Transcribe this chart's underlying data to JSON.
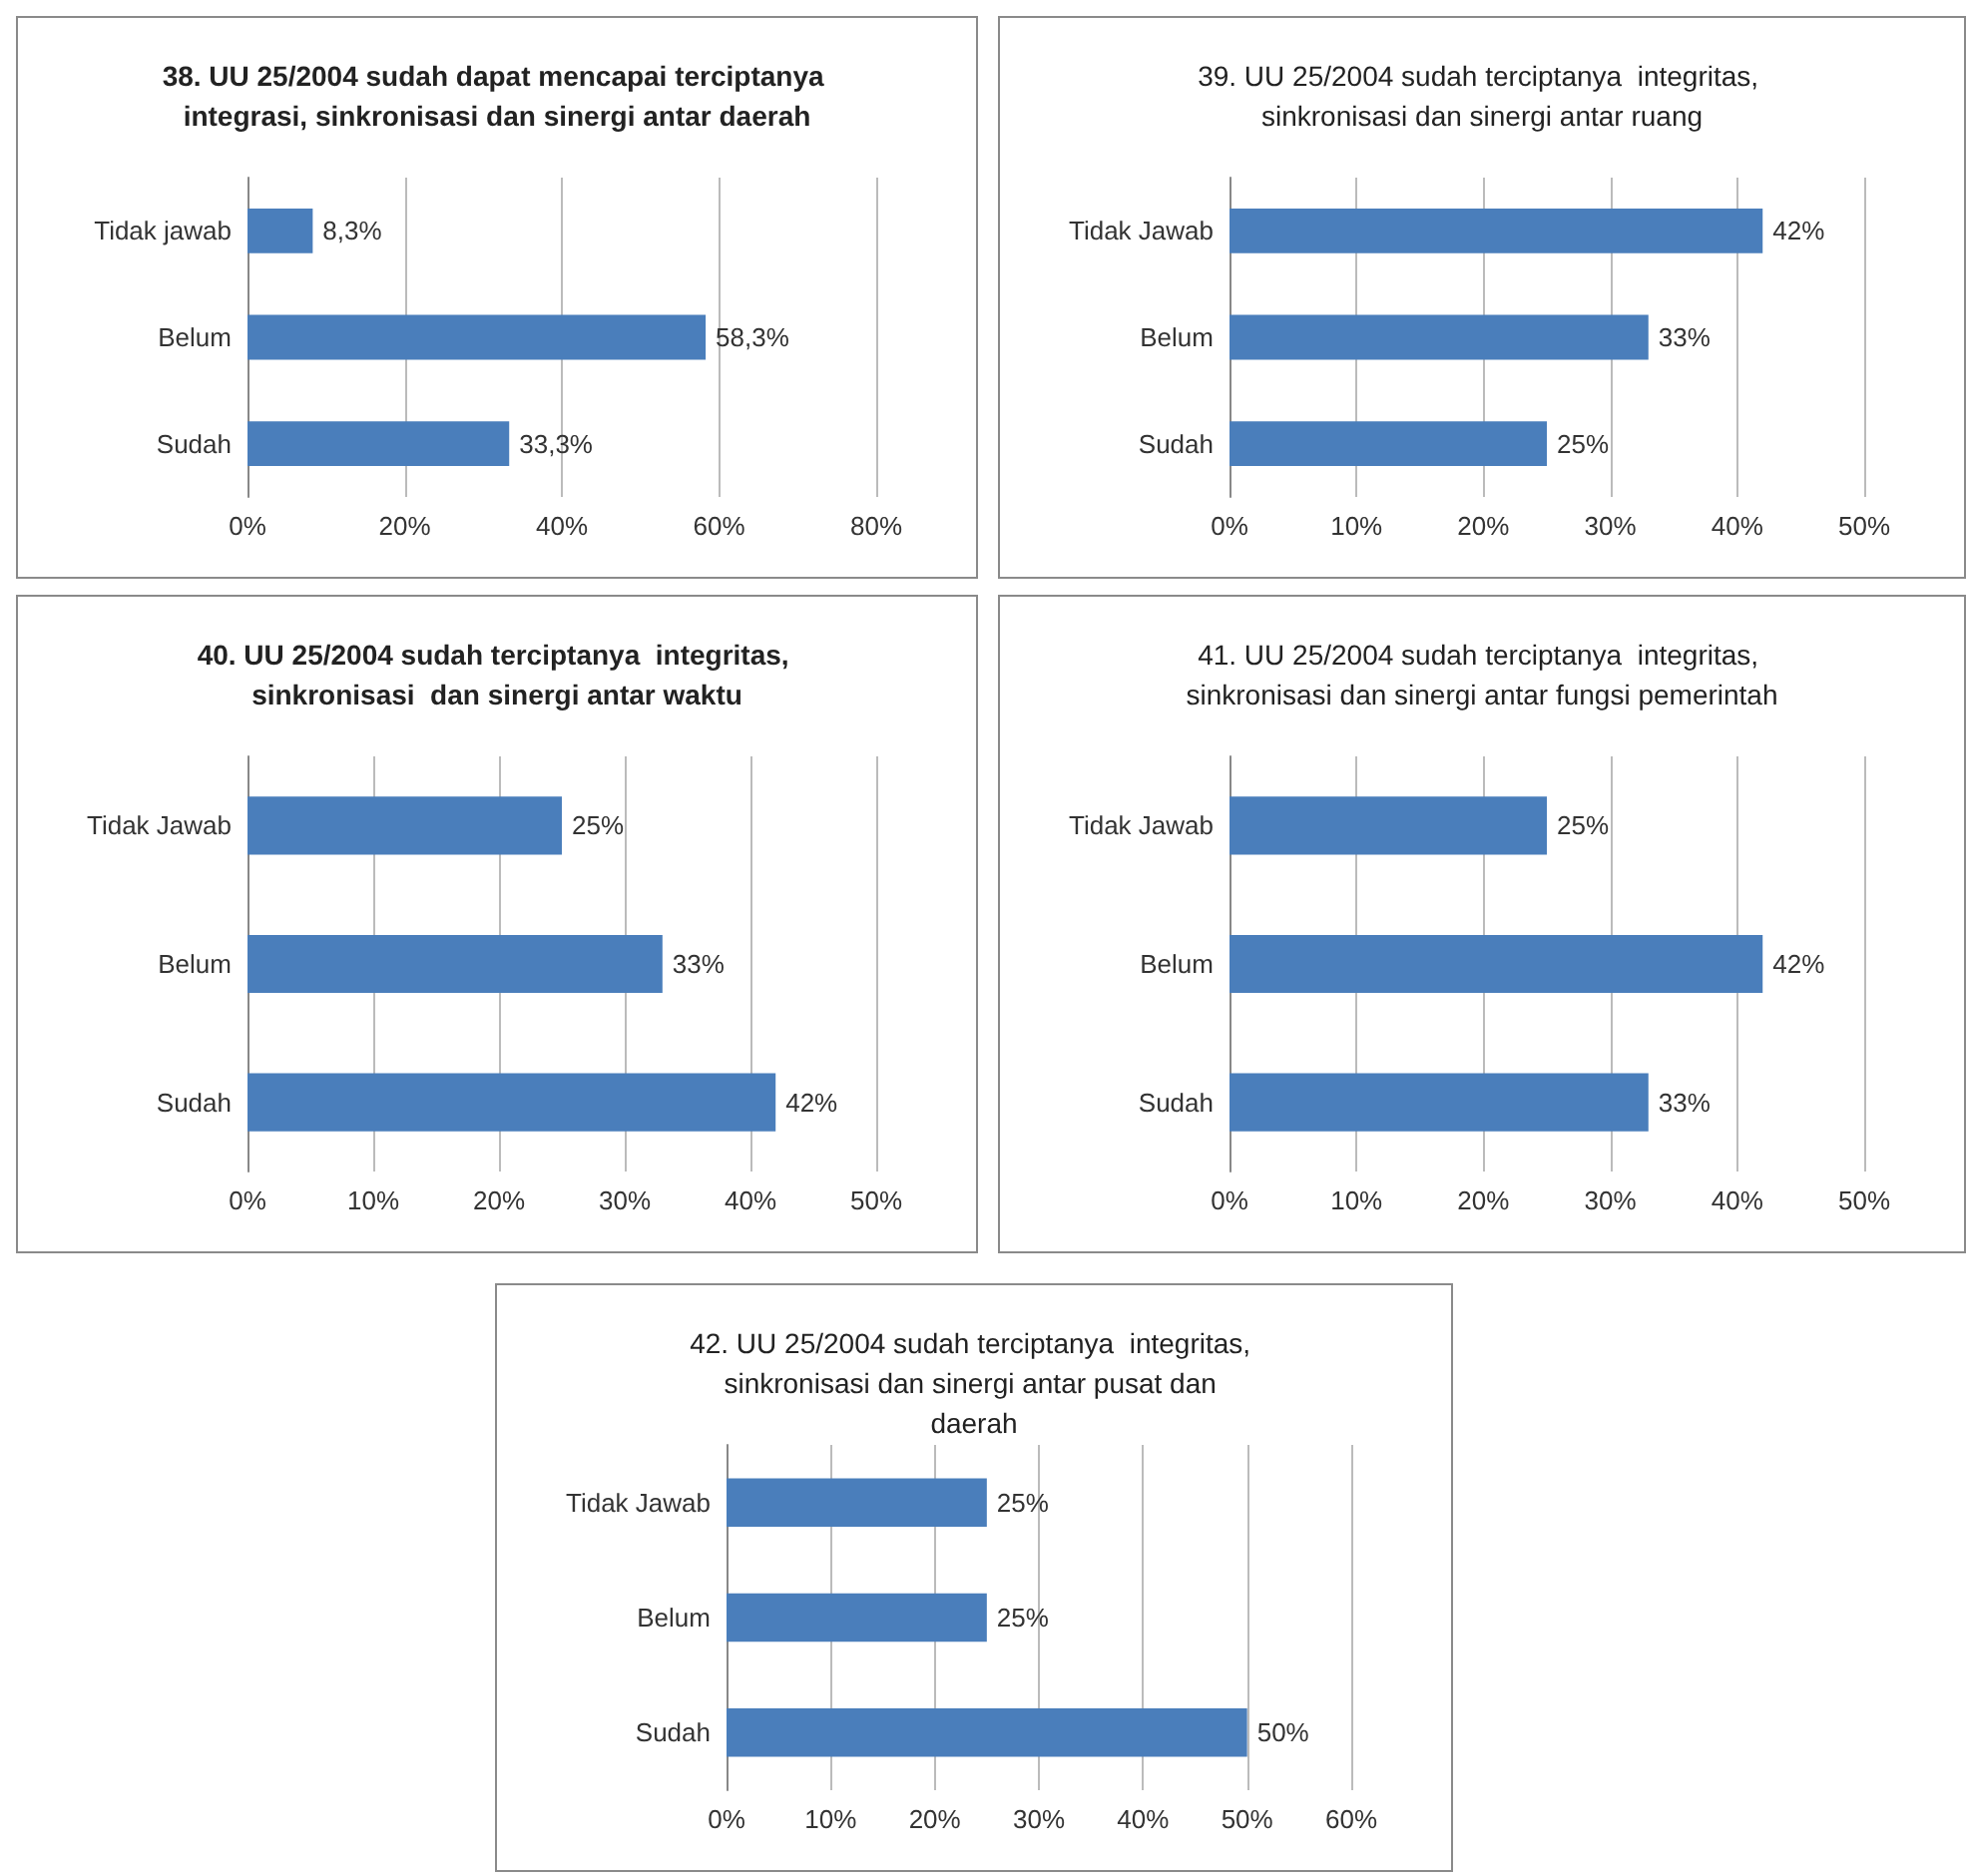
{
  "chart_data": [
    {
      "type": "bar",
      "orientation": "horizontal",
      "title": "38. UU 25/2004 sudah dapat mencapai terciptanya integrasi, sinkronisasi dan sinergi antar daerah",
      "categories": [
        "Tidak jawab",
        "Belum",
        "Sudah"
      ],
      "values": [
        8.3,
        58.3,
        33.3
      ],
      "value_labels": [
        "8,3%",
        "58,3%",
        "33,3%"
      ],
      "color": "#4a7ebb",
      "xlim": [
        0,
        80
      ],
      "xticks": [
        {
          "value": 0,
          "label": "0%"
        },
        {
          "value": 20,
          "label": "20%"
        },
        {
          "value": 40,
          "label": "40%"
        },
        {
          "value": 60,
          "label": "60%"
        },
        {
          "value": 80,
          "label": "80%"
        }
      ],
      "grid": "x"
    },
    {
      "type": "bar",
      "orientation": "horizontal",
      "title": "39. UU 25/2004 sudah terciptanya  integritas, sinkronisasi dan sinergi antar ruang",
      "categories": [
        "Tidak Jawab",
        "Belum",
        "Sudah"
      ],
      "values": [
        42,
        33,
        25
      ],
      "value_labels": [
        "42%",
        "33%",
        "25%"
      ],
      "color": "#4a7ebb",
      "xlim": [
        0,
        50
      ],
      "xticks": [
        {
          "value": 0,
          "label": "0%"
        },
        {
          "value": 10,
          "label": "10%"
        },
        {
          "value": 20,
          "label": "20%"
        },
        {
          "value": 30,
          "label": "30%"
        },
        {
          "value": 40,
          "label": "40%"
        },
        {
          "value": 50,
          "label": "50%"
        }
      ],
      "grid": "x"
    },
    {
      "type": "bar",
      "orientation": "horizontal",
      "title": "40. UU 25/2004 sudah terciptanya  integritas, sinkronisasi  dan sinergi antar waktu",
      "categories": [
        "Tidak Jawab",
        "Belum",
        "Sudah"
      ],
      "values": [
        25,
        33,
        42
      ],
      "value_labels": [
        "25%",
        "33%",
        "42%"
      ],
      "color": "#4a7ebb",
      "xlim": [
        0,
        50
      ],
      "xticks": [
        {
          "value": 0,
          "label": "0%"
        },
        {
          "value": 10,
          "label": "10%"
        },
        {
          "value": 20,
          "label": "20%"
        },
        {
          "value": 30,
          "label": "30%"
        },
        {
          "value": 40,
          "label": "40%"
        },
        {
          "value": 50,
          "label": "50%"
        }
      ],
      "grid": "x"
    },
    {
      "type": "bar",
      "orientation": "horizontal",
      "title": "41. UU 25/2004 sudah terciptanya  integritas, sinkronisasi dan sinergi antar fungsi pemerintah",
      "categories": [
        "Tidak Jawab",
        "Belum",
        "Sudah"
      ],
      "values": [
        25,
        42,
        33
      ],
      "value_labels": [
        "25%",
        "42%",
        "33%"
      ],
      "color": "#4a7ebb",
      "xlim": [
        0,
        50
      ],
      "xticks": [
        {
          "value": 0,
          "label": "0%"
        },
        {
          "value": 10,
          "label": "10%"
        },
        {
          "value": 20,
          "label": "20%"
        },
        {
          "value": 30,
          "label": "30%"
        },
        {
          "value": 40,
          "label": "40%"
        },
        {
          "value": 50,
          "label": "50%"
        }
      ],
      "grid": "x"
    },
    {
      "type": "bar",
      "orientation": "horizontal",
      "title": "42. UU 25/2004 sudah terciptanya  integritas, sinkronisasi dan sinergi antar pusat dan daerah",
      "categories": [
        "Tidak Jawab",
        "Belum",
        "Sudah"
      ],
      "values": [
        25,
        25,
        50
      ],
      "value_labels": [
        "25%",
        "25%",
        "50%"
      ],
      "color": "#4a7ebb",
      "xlim": [
        0,
        60
      ],
      "xticks": [
        {
          "value": 0,
          "label": "0%"
        },
        {
          "value": 10,
          "label": "10%"
        },
        {
          "value": 20,
          "label": "20%"
        },
        {
          "value": 30,
          "label": "30%"
        },
        {
          "value": 40,
          "label": "40%"
        },
        {
          "value": 50,
          "label": "50%"
        },
        {
          "value": 60,
          "label": "60%"
        }
      ],
      "grid": "x"
    }
  ]
}
